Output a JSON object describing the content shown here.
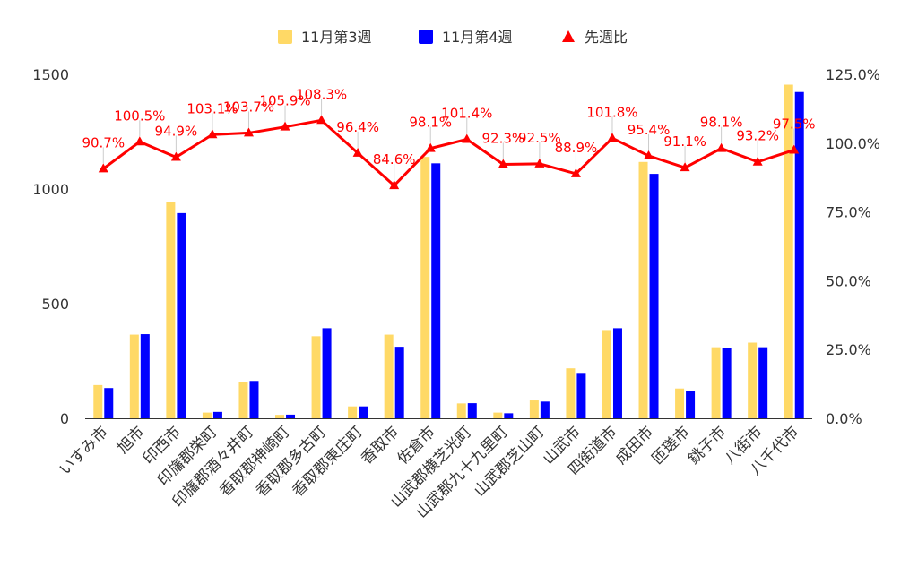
{
  "chart_data": {
    "type": "bar",
    "categories": [
      "いすみ市",
      "旭市",
      "印西市",
      "印旛郡栄町",
      "印旛郡酒々井町",
      "香取郡神崎町",
      "香取郡多古町",
      "香取郡東庄町",
      "香取市",
      "佐倉市",
      "山武郡横芝光町",
      "山武郡九十九里町",
      "山武郡芝山町",
      "山武市",
      "四街道市",
      "成田市",
      "匝瑳市",
      "銚子市",
      "八街市",
      "八千代市"
    ],
    "series": [
      {
        "name": "11月第3週",
        "type": "bar",
        "axis": "left",
        "color": "#ffd966",
        "values": [
          145,
          365,
          945,
          25,
          158,
          15,
          358,
          52,
          365,
          1140,
          65,
          25,
          78,
          218,
          385,
          1118,
          130,
          310,
          330,
          1455
        ]
      },
      {
        "name": "11月第4週",
        "type": "bar",
        "axis": "left",
        "color": "#0000ff",
        "values": [
          132,
          367,
          895,
          28,
          163,
          16,
          393,
          52,
          312,
          1112,
          66,
          22,
          73,
          198,
          393,
          1066,
          118,
          305,
          310,
          1423
        ]
      },
      {
        "name": "先週比",
        "type": "line",
        "axis": "right",
        "color": "#ff0000",
        "values": [
          90.7,
          100.5,
          94.9,
          103.1,
          103.7,
          105.9,
          108.3,
          96.4,
          84.6,
          98.1,
          101.4,
          92.3,
          92.5,
          88.9,
          101.8,
          95.4,
          91.1,
          98.1,
          93.2,
          97.5
        ],
        "labels": [
          "90.7%",
          "100.5%",
          "94.9%",
          "103.1%",
          "103.7%",
          "105.9%",
          "108.3%",
          "96.4%",
          "84.6%",
          "98.1%",
          "101.4%",
          "92.3%",
          "92.5%",
          "88.9%",
          "101.8%",
          "95.4%",
          "91.1%",
          "98.1%",
          "93.2%",
          "97.5%"
        ]
      }
    ],
    "left_axis": {
      "ylim": [
        0,
        1500
      ],
      "ticks": [
        0,
        500,
        1000,
        1500
      ],
      "tick_labels": [
        "0",
        "500",
        "1000",
        "1500"
      ]
    },
    "right_axis": {
      "ylim": [
        0,
        125
      ],
      "ticks": [
        0,
        25,
        50,
        75,
        100,
        125
      ],
      "tick_labels": [
        "0.0%",
        "25.0%",
        "50.0%",
        "75.0%",
        "100.0%",
        "125.0%"
      ]
    },
    "legend_position": "top-center",
    "grid": false,
    "title": "",
    "xlabel": "",
    "ylabel": ""
  }
}
